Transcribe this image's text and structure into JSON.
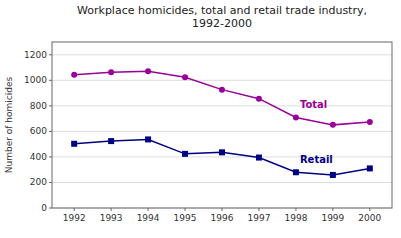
{
  "chart_data": {
    "type": "line",
    "title": "Workplace homicides, total and retail trade industry,\n1992-2000",
    "y_label": "Number of homicides",
    "x": [
      1992,
      1993,
      1994,
      1995,
      1996,
      1997,
      1998,
      1999,
      2000
    ],
    "series": [
      {
        "name": "Total",
        "color": "#990099",
        "marker": "circle",
        "values": [
          1044,
          1063,
          1071,
          1024,
          927,
          856,
          709,
          651,
          674
        ]
      },
      {
        "name": "Retail",
        "color": "#000080",
        "marker": "square",
        "values": [
          503,
          524,
          537,
          424,
          436,
          395,
          280,
          259,
          310
        ]
      }
    ],
    "xlim": [
      1991.4,
      2000.6
    ],
    "xticks": [
      1992,
      1993,
      1994,
      1995,
      1996,
      1997,
      1998,
      1999,
      2000
    ],
    "ylim": [
      0,
      1300
    ],
    "yticks": [
      0,
      200,
      400,
      600,
      800,
      1000,
      1200
    ],
    "grid": true
  }
}
